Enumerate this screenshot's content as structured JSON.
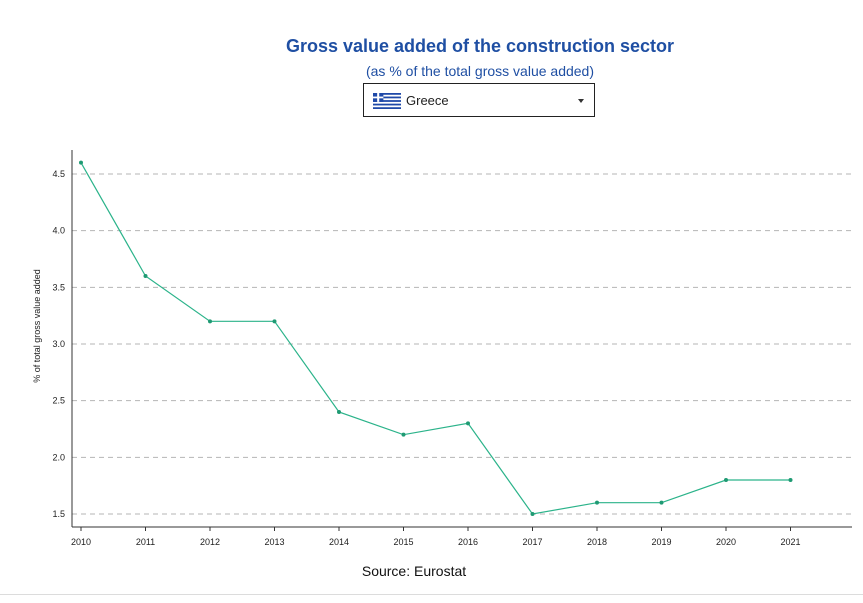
{
  "country_selector": {
    "selected": "Greece",
    "flag_icon": "greece-flag-icon",
    "caret_icon": "chevron-down-icon"
  },
  "source": "Source: Eurostat",
  "chart_data": {
    "type": "line",
    "title": "Gross value added of the construction sector",
    "subtitle": "(as % of the total gross value added)",
    "xlabel": "",
    "ylabel": "% of total gross value added",
    "x": [
      "2010",
      "2011",
      "2012",
      "2013",
      "2014",
      "2015",
      "2016",
      "2017",
      "2018",
      "2019",
      "2020",
      "2021"
    ],
    "series": [
      {
        "name": "Greece",
        "values": [
          4.6,
          3.6,
          3.2,
          3.2,
          2.4,
          2.2,
          2.3,
          1.5,
          1.6,
          1.6,
          1.8,
          1.8
        ]
      }
    ],
    "yticks": [
      1.5,
      2.0,
      2.5,
      3.0,
      3.5,
      4.0,
      4.5
    ],
    "ytick_labels": [
      "1.5",
      "2.0",
      "2.5",
      "3.0",
      "3.5",
      "4.0",
      "4.5"
    ],
    "ylim": [
      1.4,
      4.6
    ],
    "grid": true,
    "line_color": "#2bb38a"
  }
}
